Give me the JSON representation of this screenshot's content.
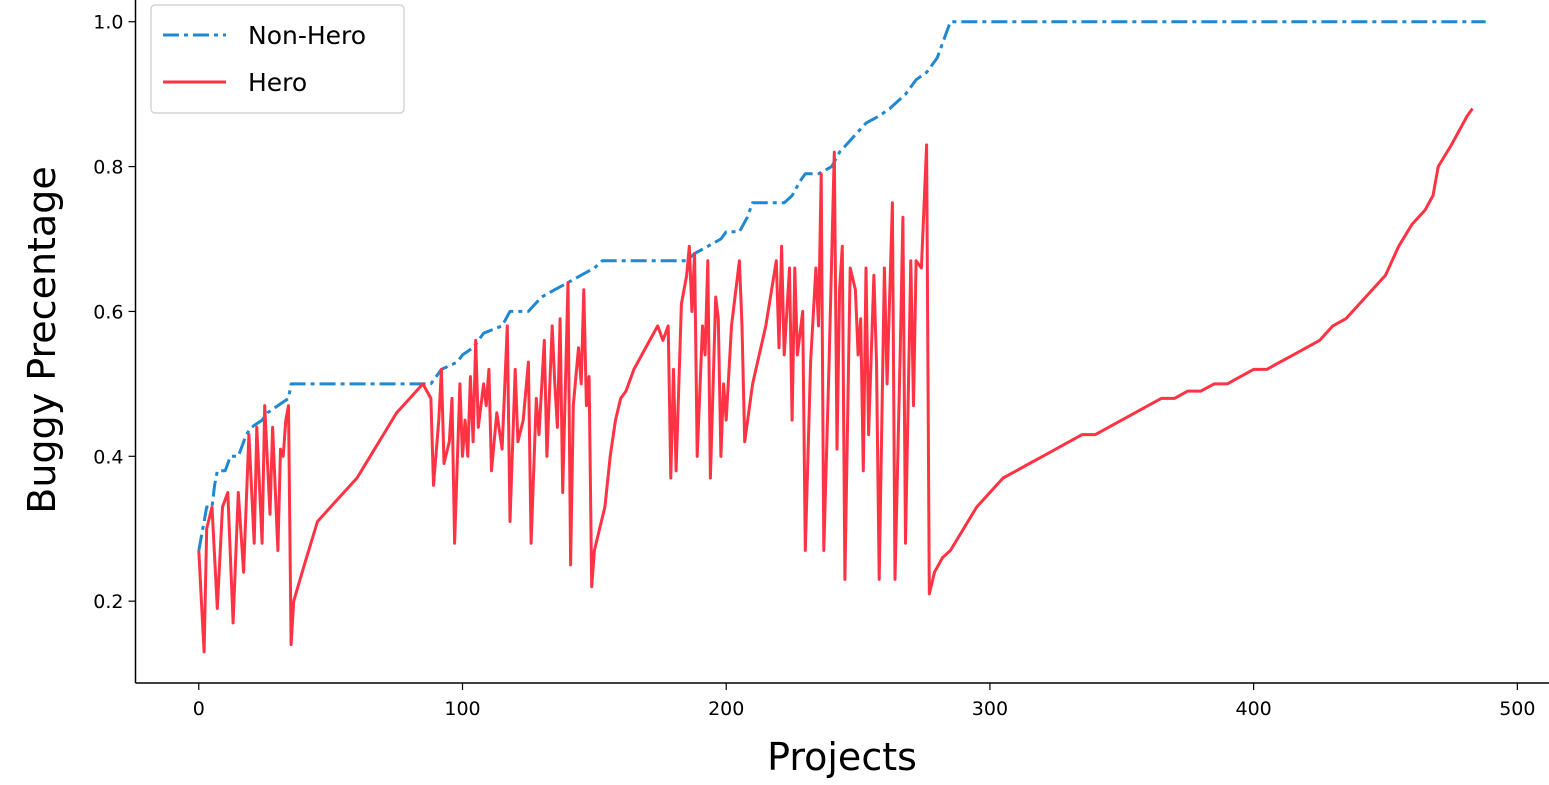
{
  "chart_data": {
    "type": "line",
    "title": "",
    "xlabel": "Projects",
    "ylabel": "Buggy Precentage",
    "xlim": [
      -24,
      512
    ],
    "ylim": [
      0.087,
      1.03
    ],
    "x_ticks": [
      0,
      100,
      200,
      300,
      400,
      500
    ],
    "y_ticks": [
      0.2,
      0.4,
      0.6,
      0.8,
      1.0
    ],
    "x_tick_labels": [
      "0",
      "100",
      "200",
      "300",
      "400",
      "500"
    ],
    "y_tick_labels": [
      "0.2",
      "0.4",
      "0.6",
      "0.8",
      "1.0"
    ],
    "grid": false,
    "legend_position": "top-left",
    "series": [
      {
        "name": "Non-Hero",
        "color": "#1f88d0",
        "style": "dash-dot",
        "points": [
          [
            0,
            0.27
          ],
          [
            2,
            0.31
          ],
          [
            3,
            0.33
          ],
          [
            5,
            0.33
          ],
          [
            6,
            0.36
          ],
          [
            7,
            0.38
          ],
          [
            10,
            0.38
          ],
          [
            12,
            0.4
          ],
          [
            15,
            0.4
          ],
          [
            18,
            0.43
          ],
          [
            20,
            0.44
          ],
          [
            24,
            0.45
          ],
          [
            26,
            0.46
          ],
          [
            30,
            0.47
          ],
          [
            34,
            0.48
          ],
          [
            35,
            0.5
          ],
          [
            88,
            0.5
          ],
          [
            92,
            0.52
          ],
          [
            98,
            0.53
          ],
          [
            100,
            0.54
          ],
          [
            104,
            0.55
          ],
          [
            108,
            0.57
          ],
          [
            115,
            0.58
          ],
          [
            118,
            0.6
          ],
          [
            125,
            0.6
          ],
          [
            130,
            0.62
          ],
          [
            135,
            0.63
          ],
          [
            140,
            0.64
          ],
          [
            145,
            0.65
          ],
          [
            150,
            0.66
          ],
          [
            153,
            0.67
          ],
          [
            185,
            0.67
          ],
          [
            188,
            0.68
          ],
          [
            193,
            0.69
          ],
          [
            198,
            0.7
          ],
          [
            200,
            0.71
          ],
          [
            205,
            0.71
          ],
          [
            208,
            0.73
          ],
          [
            210,
            0.75
          ],
          [
            222,
            0.75
          ],
          [
            225,
            0.76
          ],
          [
            228,
            0.78
          ],
          [
            230,
            0.79
          ],
          [
            235,
            0.79
          ],
          [
            240,
            0.8
          ],
          [
            243,
            0.82
          ],
          [
            248,
            0.84
          ],
          [
            253,
            0.86
          ],
          [
            258,
            0.87
          ],
          [
            262,
            0.88
          ],
          [
            265,
            0.89
          ],
          [
            268,
            0.9
          ],
          [
            272,
            0.92
          ],
          [
            276,
            0.93
          ],
          [
            280,
            0.95
          ],
          [
            283,
            0.98
          ],
          [
            285,
            1.0
          ],
          [
            488,
            1.0
          ]
        ]
      },
      {
        "name": "Hero",
        "color": "#ff3344",
        "style": "solid",
        "points": [
          [
            0,
            0.27
          ],
          [
            1,
            0.2
          ],
          [
            2,
            0.13
          ],
          [
            3,
            0.3
          ],
          [
            5,
            0.33
          ],
          [
            7,
            0.19
          ],
          [
            9,
            0.33
          ],
          [
            11,
            0.35
          ],
          [
            13,
            0.17
          ],
          [
            15,
            0.35
          ],
          [
            17,
            0.24
          ],
          [
            19,
            0.43
          ],
          [
            21,
            0.28
          ],
          [
            22,
            0.44
          ],
          [
            24,
            0.28
          ],
          [
            25,
            0.47
          ],
          [
            27,
            0.32
          ],
          [
            28,
            0.44
          ],
          [
            30,
            0.27
          ],
          [
            31,
            0.41
          ],
          [
            32,
            0.4
          ],
          [
            33,
            0.45
          ],
          [
            34,
            0.47
          ],
          [
            35,
            0.14
          ],
          [
            36,
            0.2
          ],
          [
            40,
            0.25
          ],
          [
            45,
            0.31
          ],
          [
            50,
            0.33
          ],
          [
            55,
            0.35
          ],
          [
            60,
            0.37
          ],
          [
            65,
            0.4
          ],
          [
            70,
            0.43
          ],
          [
            75,
            0.46
          ],
          [
            80,
            0.48
          ],
          [
            85,
            0.5
          ],
          [
            88,
            0.48
          ],
          [
            89,
            0.36
          ],
          [
            91,
            0.45
          ],
          [
            92,
            0.52
          ],
          [
            93,
            0.39
          ],
          [
            95,
            0.42
          ],
          [
            96,
            0.48
          ],
          [
            97,
            0.28
          ],
          [
            99,
            0.5
          ],
          [
            100,
            0.4
          ],
          [
            101,
            0.45
          ],
          [
            102,
            0.4
          ],
          [
            103,
            0.51
          ],
          [
            104,
            0.42
          ],
          [
            105,
            0.56
          ],
          [
            106,
            0.44
          ],
          [
            108,
            0.5
          ],
          [
            109,
            0.47
          ],
          [
            110,
            0.52
          ],
          [
            111,
            0.38
          ],
          [
            113,
            0.46
          ],
          [
            115,
            0.41
          ],
          [
            117,
            0.58
          ],
          [
            118,
            0.31
          ],
          [
            120,
            0.52
          ],
          [
            121,
            0.42
          ],
          [
            123,
            0.45
          ],
          [
            125,
            0.53
          ],
          [
            126,
            0.28
          ],
          [
            128,
            0.48
          ],
          [
            129,
            0.43
          ],
          [
            131,
            0.56
          ],
          [
            132,
            0.4
          ],
          [
            134,
            0.58
          ],
          [
            135,
            0.5
          ],
          [
            136,
            0.44
          ],
          [
            137,
            0.59
          ],
          [
            138,
            0.35
          ],
          [
            140,
            0.64
          ],
          [
            141,
            0.25
          ],
          [
            142,
            0.47
          ],
          [
            144,
            0.55
          ],
          [
            145,
            0.5
          ],
          [
            146,
            0.63
          ],
          [
            147,
            0.47
          ],
          [
            148,
            0.51
          ],
          [
            149,
            0.22
          ],
          [
            150,
            0.27
          ],
          [
            152,
            0.3
          ],
          [
            154,
            0.33
          ],
          [
            156,
            0.4
          ],
          [
            158,
            0.45
          ],
          [
            160,
            0.48
          ],
          [
            162,
            0.49
          ],
          [
            165,
            0.52
          ],
          [
            168,
            0.54
          ],
          [
            171,
            0.56
          ],
          [
            174,
            0.58
          ],
          [
            176,
            0.56
          ],
          [
            178,
            0.58
          ],
          [
            179,
            0.37
          ],
          [
            180,
            0.52
          ],
          [
            181,
            0.38
          ],
          [
            183,
            0.61
          ],
          [
            185,
            0.65
          ],
          [
            186,
            0.69
          ],
          [
            187,
            0.6
          ],
          [
            188,
            0.68
          ],
          [
            189,
            0.4
          ],
          [
            191,
            0.58
          ],
          [
            192,
            0.54
          ],
          [
            193,
            0.67
          ],
          [
            194,
            0.37
          ],
          [
            196,
            0.62
          ],
          [
            197,
            0.59
          ],
          [
            198,
            0.4
          ],
          [
            199,
            0.5
          ],
          [
            200,
            0.45
          ],
          [
            202,
            0.58
          ],
          [
            205,
            0.67
          ],
          [
            206,
            0.58
          ],
          [
            207,
            0.42
          ],
          [
            210,
            0.5
          ],
          [
            215,
            0.58
          ],
          [
            219,
            0.67
          ],
          [
            220,
            0.55
          ],
          [
            221,
            0.69
          ],
          [
            222,
            0.54
          ],
          [
            224,
            0.66
          ],
          [
            225,
            0.45
          ],
          [
            226,
            0.66
          ],
          [
            227,
            0.54
          ],
          [
            229,
            0.6
          ],
          [
            230,
            0.27
          ],
          [
            232,
            0.53
          ],
          [
            234,
            0.66
          ],
          [
            235,
            0.58
          ],
          [
            236,
            0.79
          ],
          [
            237,
            0.27
          ],
          [
            239,
            0.53
          ],
          [
            241,
            0.82
          ],
          [
            242,
            0.41
          ],
          [
            243,
            0.63
          ],
          [
            244,
            0.69
          ],
          [
            245,
            0.23
          ],
          [
            247,
            0.66
          ],
          [
            249,
            0.63
          ],
          [
            250,
            0.54
          ],
          [
            251,
            0.59
          ],
          [
            252,
            0.38
          ],
          [
            253,
            0.66
          ],
          [
            254,
            0.43
          ],
          [
            256,
            0.65
          ],
          [
            257,
            0.53
          ],
          [
            258,
            0.23
          ],
          [
            260,
            0.66
          ],
          [
            261,
            0.5
          ],
          [
            263,
            0.75
          ],
          [
            264,
            0.23
          ],
          [
            266,
            0.55
          ],
          [
            267,
            0.73
          ],
          [
            268,
            0.28
          ],
          [
            270,
            0.67
          ],
          [
            271,
            0.47
          ],
          [
            272,
            0.67
          ],
          [
            274,
            0.66
          ],
          [
            276,
            0.83
          ],
          [
            277,
            0.21
          ],
          [
            279,
            0.24
          ],
          [
            282,
            0.26
          ],
          [
            285,
            0.27
          ],
          [
            290,
            0.3
          ],
          [
            295,
            0.33
          ],
          [
            300,
            0.35
          ],
          [
            305,
            0.37
          ],
          [
            310,
            0.38
          ],
          [
            315,
            0.39
          ],
          [
            320,
            0.4
          ],
          [
            325,
            0.41
          ],
          [
            330,
            0.42
          ],
          [
            335,
            0.43
          ],
          [
            340,
            0.43
          ],
          [
            345,
            0.44
          ],
          [
            350,
            0.45
          ],
          [
            355,
            0.46
          ],
          [
            360,
            0.47
          ],
          [
            365,
            0.48
          ],
          [
            370,
            0.48
          ],
          [
            375,
            0.49
          ],
          [
            380,
            0.49
          ],
          [
            385,
            0.5
          ],
          [
            390,
            0.5
          ],
          [
            395,
            0.51
          ],
          [
            400,
            0.52
          ],
          [
            405,
            0.52
          ],
          [
            410,
            0.53
          ],
          [
            415,
            0.54
          ],
          [
            420,
            0.55
          ],
          [
            425,
            0.56
          ],
          [
            430,
            0.58
          ],
          [
            435,
            0.59
          ],
          [
            440,
            0.61
          ],
          [
            445,
            0.63
          ],
          [
            450,
            0.65
          ],
          [
            455,
            0.69
          ],
          [
            460,
            0.72
          ],
          [
            465,
            0.74
          ],
          [
            468,
            0.76
          ],
          [
            470,
            0.8
          ],
          [
            475,
            0.83
          ],
          [
            478,
            0.85
          ],
          [
            481,
            0.87
          ],
          [
            483,
            0.88
          ]
        ]
      }
    ]
  }
}
